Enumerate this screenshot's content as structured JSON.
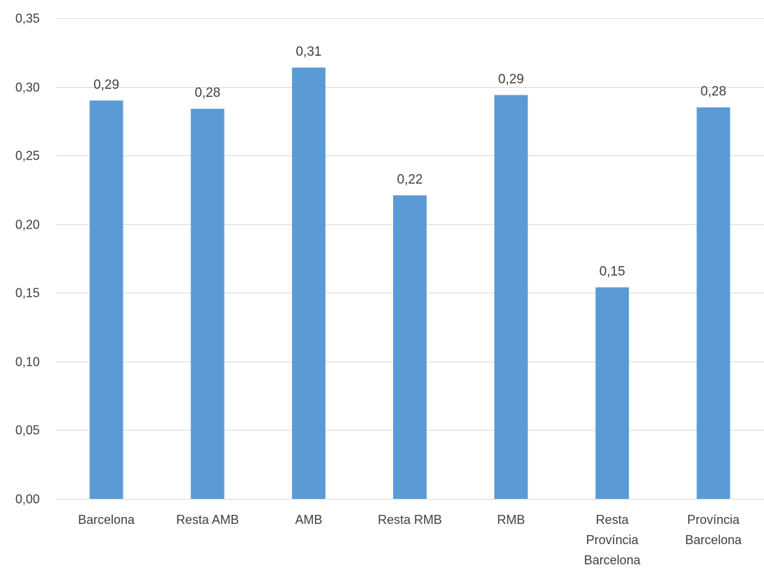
{
  "chart_data": {
    "type": "bar",
    "title": "",
    "xlabel": "",
    "ylabel": "",
    "categories": [
      [
        "Barcelona"
      ],
      [
        "Resta AMB"
      ],
      [
        "AMB"
      ],
      [
        "Resta RMB"
      ],
      [
        "RMB"
      ],
      [
        "Resta",
        "Província",
        "Barcelona"
      ],
      [
        "Província",
        "Barcelona"
      ]
    ],
    "values": [
      0.29,
      0.284,
      0.314,
      0.221,
      0.294,
      0.154,
      0.285
    ],
    "data_labels": [
      "0,29",
      "0,28",
      "0,31",
      "0,22",
      "0,29",
      "0,15",
      "0,28"
    ],
    "ylim": [
      0,
      0.35
    ],
    "yticks": [
      0,
      0.05,
      0.1,
      0.15,
      0.2,
      0.25,
      0.3,
      0.35
    ],
    "ytick_labels": [
      "0,00",
      "0,05",
      "0,10",
      "0,15",
      "0,20",
      "0,25",
      "0,30",
      "0,35"
    ],
    "grid": true,
    "legend": "none",
    "colors": {
      "bar": "#5b9bd5",
      "grid": "#d9d9d9",
      "text": "#404040"
    }
  }
}
